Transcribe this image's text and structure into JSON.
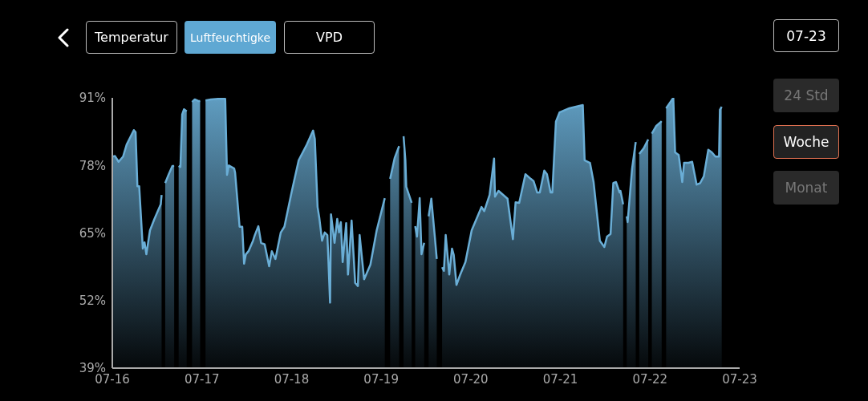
{
  "chart_data": {
    "type": "area",
    "annotations": [
      "Temperatur",
      "Luftfeuchtigke",
      "VPD",
      "07-23",
      "24 Std",
      "Woche",
      "Monat"
    ],
    "x": [
      "--07-16T00:00",
      "--07-16T00:43",
      "--07-16T01:41",
      "--07-16T02:53",
      "--07-16T03:50",
      "--07-16T05:46",
      "--07-16T06:14",
      "--07-16T06:43",
      "--07-16T07:12",
      "--07-16T08:10",
      "--07-16T08:38",
      "--07-16T09:07",
      "--07-16T10:05",
      "--07-16T11:17",
      "--07-16T12:58",
      "--07-16T13:12",
      "--07-16T13:41",
      "--07-16T14:10",
      "--07-16T15:07",
      "--07-16T16:05",
      "--07-16T16:34",
      "--07-16T17:17",
      "--07-16T17:46",
      "--07-16T18:14",
      "--07-16T18:43",
      "--07-16T19:12",
      "--07-16T19:55",
      "--07-16T20:38",
      "--07-16T21:22",
      "--07-16T22:05",
      "--07-16T23:02",
      "--07-16T23:31",
      "--07-17T00:14",
      "--07-17T00:58",
      "--07-17T02:24",
      "--07-17T04:19",
      "--07-17T06:14",
      "--07-17T06:43",
      "--07-17T07:12",
      "--07-17T08:38",
      "--07-17T08:53",
      "--07-17T10:05",
      "--07-17T10:48",
      "--07-17T11:17",
      "--07-17T11:46",
      "--07-17T12:29",
      "--07-17T13:41",
      "--07-17T14:10",
      "--07-17T15:07",
      "--07-17T15:50",
      "--07-17T16:48",
      "--07-17T18:00",
      "--07-17T18:43",
      "--07-17T19:41",
      "--07-17T21:07",
      "--07-17T22:05",
      "--07-18T00:00",
      "--07-18T01:55",
      "--07-18T04:05",
      "--07-18T05:46",
      "--07-18T06:14",
      "--07-18T06:58",
      "--07-18T07:26",
      "--07-18T08:10",
      "--07-18T08:53",
      "--07-18T09:36",
      "--07-18T10:19",
      "--07-18T10:34",
      "--07-18T11:31",
      "--07-18T12:14",
      "--07-18T12:43",
      "--07-18T13:12",
      "--07-18T13:41",
      "--07-18T14:38",
      "--07-18T15:07",
      "--07-18T16:05",
      "--07-18T17:02",
      "--07-18T17:46",
      "--07-18T18:14",
      "--07-18T19:26",
      "--07-18T21:07",
      "--07-18T22:48",
      "--07-19T00:58",
      "--07-19T01:41",
      "--07-19T02:24",
      "--07-19T03:36",
      "--07-19T04:48",
      "--07-19T05:17",
      "--07-19T06:00",
      "--07-19T06:29",
      "--07-19T06:43",
      "--07-19T08:10",
      "--07-19T08:38",
      "--07-19T09:07",
      "--07-19T09:36",
      "--07-19T10:19",
      "--07-19T10:48",
      "--07-19T11:31",
      "--07-19T12:14",
      "--07-19T12:43",
      "--07-19T13:26",
      "--07-19T14:24",
      "--07-19T14:53",
      "--07-19T15:36",
      "--07-19T16:19",
      "--07-19T16:48",
      "--07-19T17:17",
      "--07-19T18:14",
      "--07-19T18:58",
      "--07-19T19:26",
      "--07-19T20:10",
      "--07-19T21:07",
      "--07-19T22:34",
      "--07-20T00:14",
      "--07-20T02:53",
      "--07-20T03:36",
      "--07-20T05:02",
      "--07-20T06:14",
      "--07-20T06:29",
      "--07-20T07:26",
      "--07-20T09:50",
      "--07-20T11:17",
      "--07-20T12:00",
      "--07-20T12:58",
      "--07-20T14:38",
      "--07-20T16:05",
      "--07-20T16:48",
      "--07-20T17:46",
      "--07-20T18:29",
      "--07-20T19:41",
      "--07-20T20:24",
      "--07-20T21:22",
      "--07-20T21:50",
      "--07-20T22:48",
      "--07-20T23:46",
      "--07-21T02:24",
      "--07-21T06:00",
      "--07-21T06:29",
      "--07-21T07:55",
      "--07-21T08:53",
      "--07-21T10:34",
      "--07-21T11:46",
      "--07-21T12:29",
      "--07-21T13:26",
      "--07-21T14:10",
      "--07-21T14:53",
      "--07-21T15:50",
      "--07-21T16:05",
      "--07-21T16:48",
      "--07-21T17:17",
      "--07-21T17:46",
      "--07-21T18:00",
      "--07-21T19:12",
      "--07-21T20:10",
      "--07-21T20:38",
      "--07-21T21:07",
      "--07-21T22:19",
      "--07-21T23:31",
      "--07-22T00:14",
      "--07-22T00:29",
      "--07-22T01:41",
      "--07-22T03:07",
      "--07-22T03:36",
      "--07-22T04:19",
      "--07-22T06:14",
      "--07-22T06:43",
      "--07-22T07:41",
      "--07-22T08:38",
      "--07-22T09:07",
      "--07-22T10:19",
      "--07-22T11:17",
      "--07-22T12:29",
      "--07-22T13:26",
      "--07-22T14:24",
      "--07-22T15:36",
      "--07-22T16:34",
      "--07-22T17:31",
      "--07-22T18:29",
      "--07-22T18:43",
      "--07-22T19:12"
    ],
    "series": [
      {
        "color": "#6aaed6",
        "values": [
          79.7,
          79.8,
          78.7,
          79.7,
          82.0,
          84.8,
          84.4,
          74.0,
          74.0,
          62.0,
          63.2,
          60.9,
          65.5,
          67.7,
          70.5,
          72.3,
          null,
          74.6,
          76.3,
          77.9,
          77.9,
          null,
          77.9,
          77.7,
          87.8,
          88.8,
          88.4,
          null,
          90.2,
          90.7,
          90.4,
          90.4,
          null,
          90.5,
          90.7,
          90.8,
          90.8,
          76.2,
          78.0,
          77.4,
          76.6,
          66.2,
          66.2,
          59.1,
          60.9,
          61.5,
          63.5,
          64.6,
          66.3,
          63.1,
          62.8,
          58.6,
          61.5,
          60.0,
          65.1,
          66.2,
          72.8,
          79.0,
          82.0,
          84.7,
          83.1,
          70.0,
          67.9,
          63.5,
          65.1,
          64.6,
          51.6,
          68.6,
          63.1,
          67.7,
          65.1,
          67.1,
          59.4,
          66.9,
          57.0,
          67.4,
          55.4,
          54.8,
          64.6,
          56.1,
          58.9,
          65.5,
          71.7,
          null,
          75.4,
          79.4,
          81.7,
          null,
          83.6,
          79.0,
          73.9,
          70.8,
          null,
          66.3,
          64.3,
          71.7,
          60.9,
          63.1,
          null,
          68.2,
          71.6,
          64.0,
          60.0,
          null,
          58.4,
          57.7,
          64.6,
          57.0,
          62.0,
          60.8,
          55.0,
          56.9,
          59.4,
          65.5,
          70.0,
          69.2,
          72.3,
          79.3,
          72.0,
          73.1,
          71.6,
          63.8,
          70.9,
          70.8,
          76.3,
          75.4,
          75.0,
          72.8,
          72.8,
          77.0,
          76.3,
          72.8,
          72.8,
          86.4,
          88.2,
          89.0,
          89.6,
          79.0,
          78.5,
          74.8,
          63.5,
          62.3,
          64.3,
          64.8,
          74.6,
          74.8,
          72.8,
          73.1,
          70.5,
          null,
          68.2,
          67.1,
          77.4,
          82.5,
          null,
          80.2,
          81.3,
          83.0,
          null,
          84.1,
          85.6,
          86.5,
          null,
          89.0,
          91.0,
          80.5,
          80.0,
          74.8,
          78.5,
          78.5,
          78.7,
          74.3,
          74.6,
          75.9,
          81.0,
          80.5,
          79.7,
          79.7,
          88.7,
          89.3
        ]
      }
    ],
    "xlim": [
      "--07-16",
      "--07-23"
    ],
    "xticks": [
      {
        "value": "--07-16",
        "label": "07-16"
      },
      {
        "value": "--07-17",
        "label": "07-17"
      },
      {
        "value": "--07-18",
        "label": "07-18"
      },
      {
        "value": "--07-19",
        "label": "07-19"
      },
      {
        "value": "--07-20",
        "label": "07-20"
      },
      {
        "value": "--07-21",
        "label": "07-21"
      },
      {
        "value": "--07-22",
        "label": "07-22"
      },
      {
        "value": "--07-23",
        "label": "07-23"
      }
    ],
    "ylim": [
      39,
      91
    ],
    "yticks": [
      {
        "value": 39,
        "label": "39%"
      },
      {
        "value": 52,
        "label": "52%"
      },
      {
        "value": 65,
        "label": "65%"
      },
      {
        "value": 78,
        "label": "78%"
      },
      {
        "value": 91,
        "label": "91%"
      }
    ],
    "grid": false,
    "legend": false,
    "marker": "none",
    "line_style": "solid"
  }
}
